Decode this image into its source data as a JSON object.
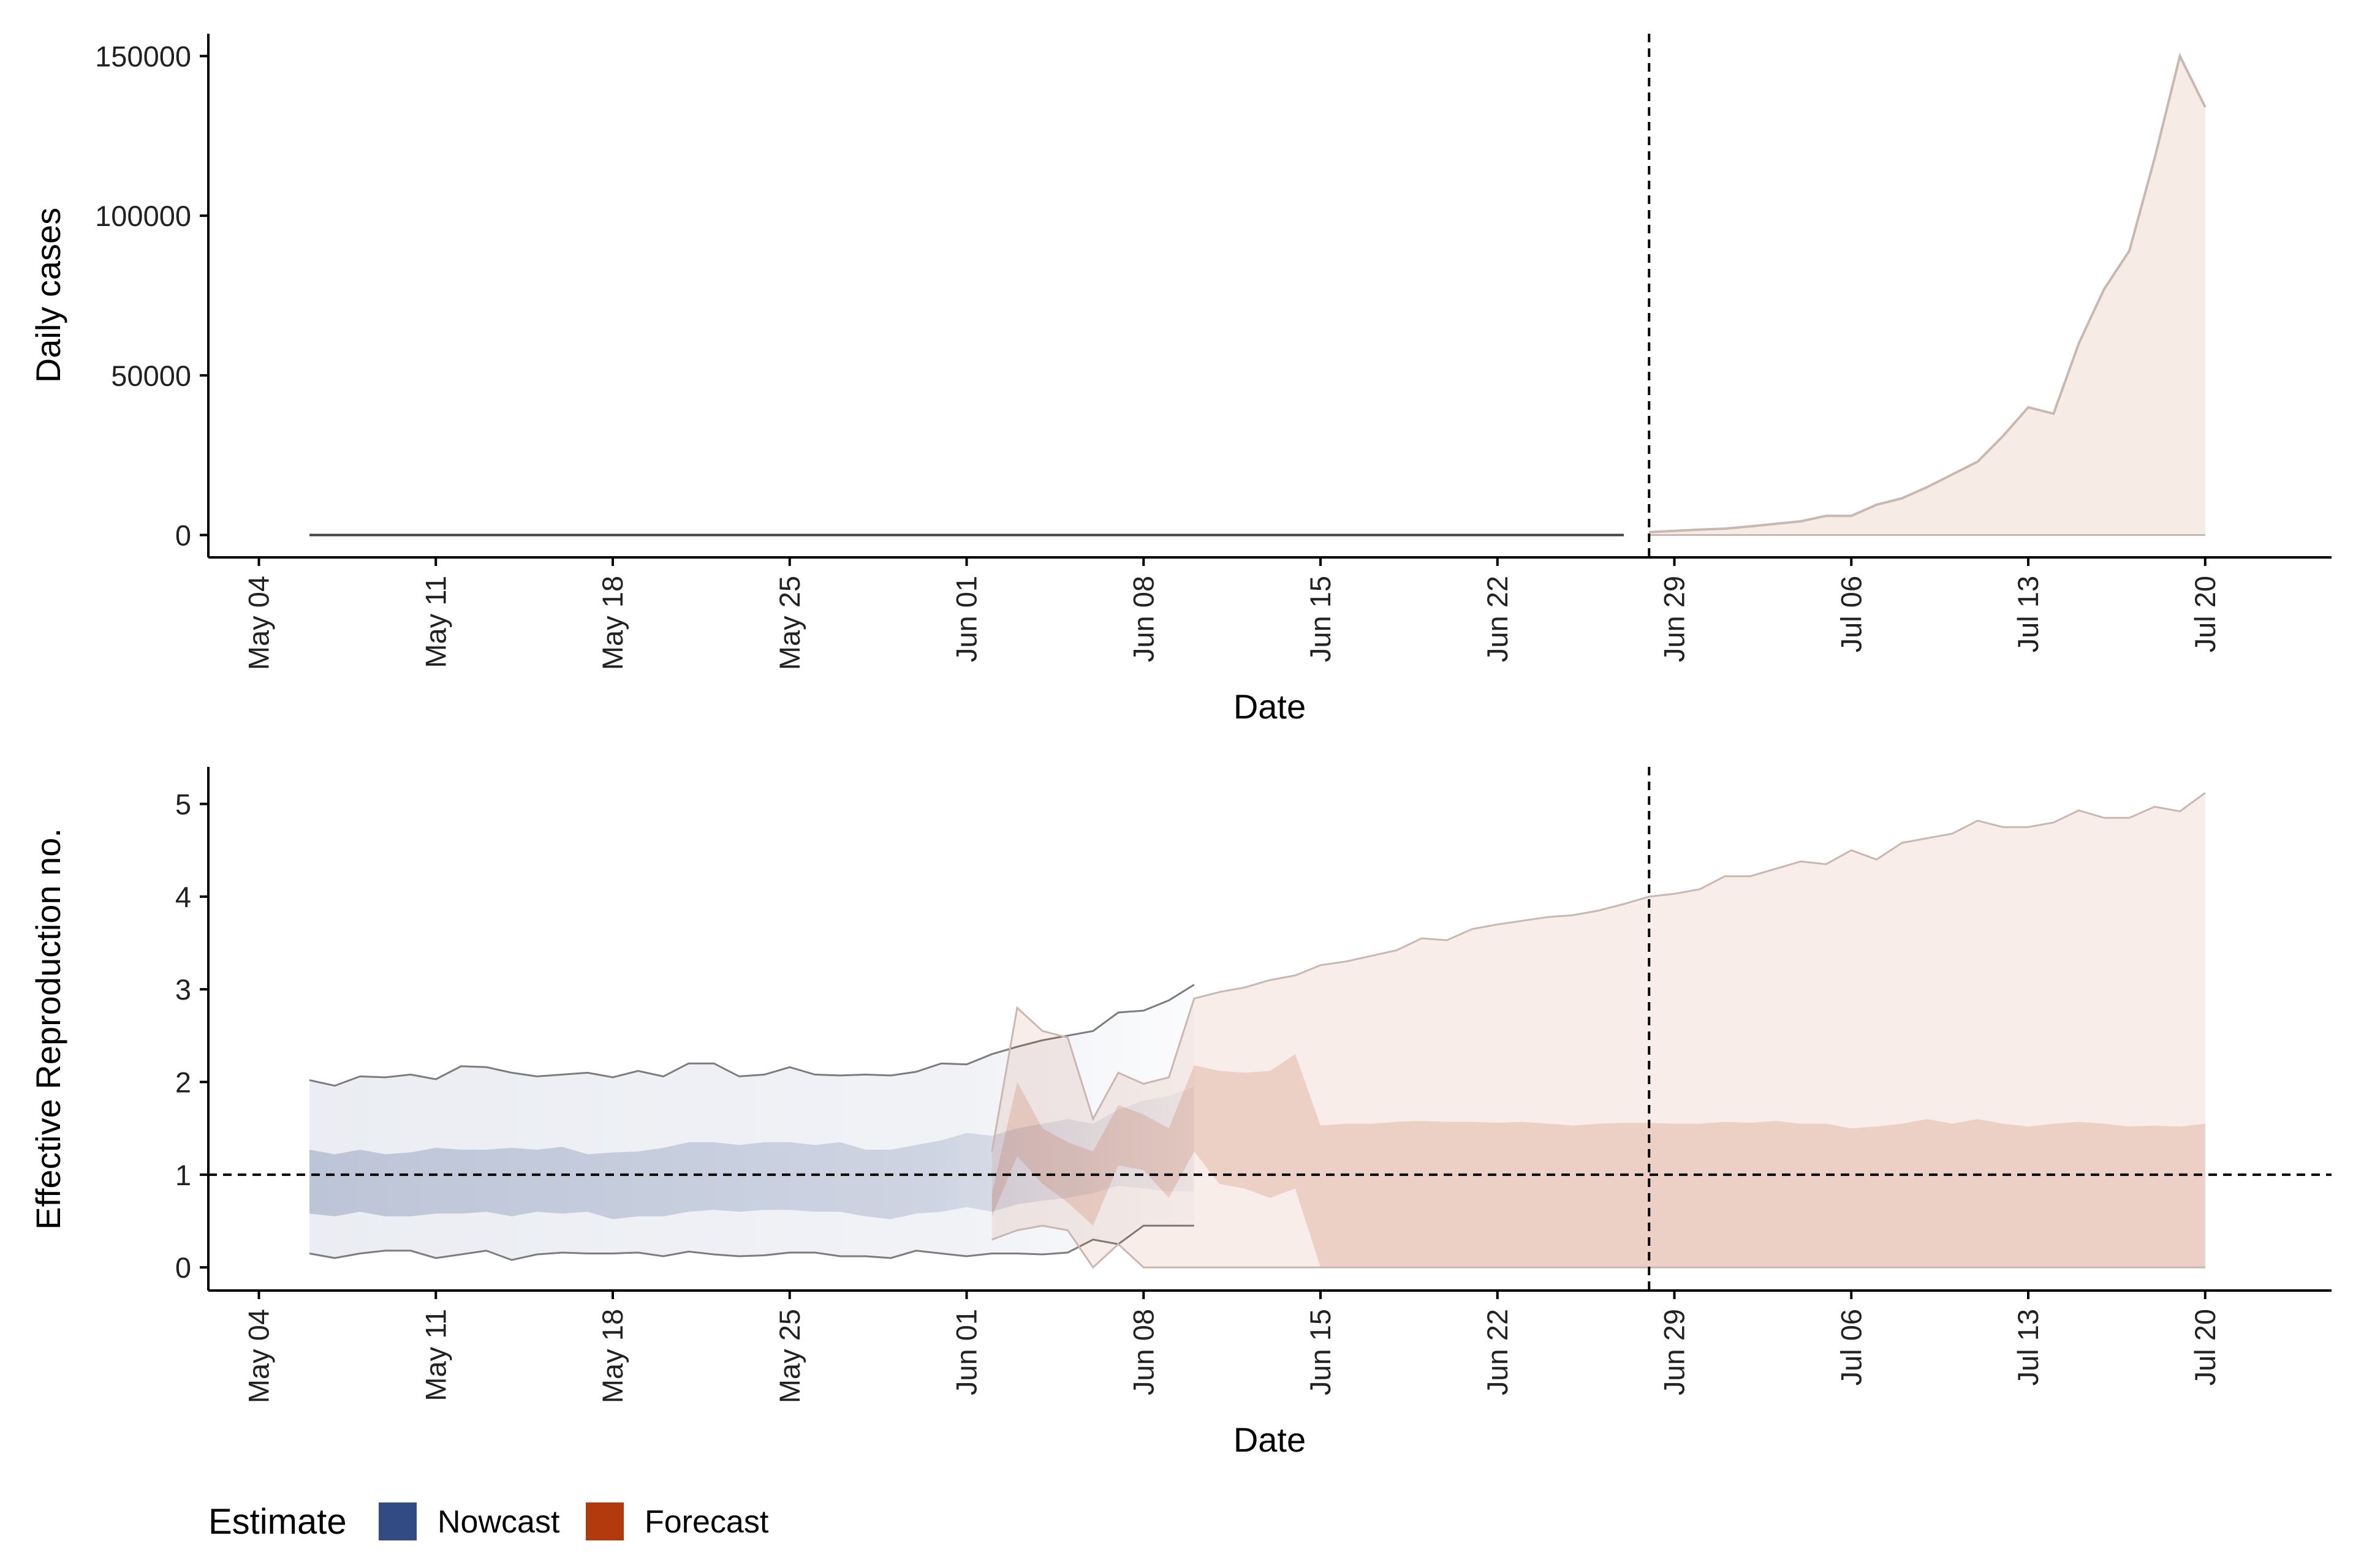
{
  "colors": {
    "nowcast": "#324b84",
    "forecast": "#b33a0c",
    "axis": "#000000",
    "band_edge": "#7d7d7d",
    "forecast_edge": "#c9b7b2"
  },
  "legend": {
    "title": "Estimate",
    "items": [
      {
        "label": "Nowcast",
        "color": "#324b84"
      },
      {
        "label": "Forecast",
        "color": "#b33a0c"
      }
    ]
  },
  "chart_data": [
    {
      "type": "area",
      "ylabel": "Daily cases",
      "xlabel": "Date",
      "x_range": [
        "2020-05-02",
        "2020-07-25"
      ],
      "ylim": [
        -7000,
        157000
      ],
      "y_ticks": [
        0,
        50000,
        100000,
        150000
      ],
      "x_ticks": [
        "2020-05-04",
        "2020-05-11",
        "2020-05-18",
        "2020-05-25",
        "2020-06-01",
        "2020-06-08",
        "2020-06-15",
        "2020-06-22",
        "2020-06-29",
        "2020-07-06",
        "2020-07-13",
        "2020-07-20"
      ],
      "x_tick_labels": [
        "May 04",
        "May 11",
        "May 18",
        "May 25",
        "Jun 01",
        "Jun 08",
        "Jun 15",
        "Jun 22",
        "Jun 29",
        "Jul 06",
        "Jul 13",
        "Jul 20"
      ],
      "vline": "2020-06-28",
      "grid": false,
      "series": [
        {
          "name": "Nowcast",
          "x_start": "2020-05-06",
          "x_end": "2020-06-27",
          "lower": 0,
          "upper": 300
        },
        {
          "name": "Forecast",
          "x_start": "2020-06-28",
          "upper": [
            900,
            1300,
            1700,
            2000,
            2700,
            3500,
            4300,
            6000,
            6000,
            9500,
            11500,
            15000,
            19000,
            23000,
            31000,
            40000,
            38000,
            60000,
            77000,
            89000,
            118000,
            150000,
            134000
          ],
          "lower": 0
        }
      ]
    },
    {
      "type": "area",
      "ylabel": "Effective Reproduction no.",
      "xlabel": "Date",
      "x_range": [
        "2020-05-02",
        "2020-07-25"
      ],
      "ylim": [
        -0.25,
        5.4
      ],
      "y_ticks": [
        0,
        1,
        2,
        3,
        4,
        5
      ],
      "x_ticks": [
        "2020-05-04",
        "2020-05-11",
        "2020-05-18",
        "2020-05-25",
        "2020-06-01",
        "2020-06-08",
        "2020-06-15",
        "2020-06-22",
        "2020-06-29",
        "2020-07-06",
        "2020-07-13",
        "2020-07-20"
      ],
      "x_tick_labels": [
        "May 04",
        "May 11",
        "May 18",
        "May 25",
        "Jun 01",
        "Jun 08",
        "Jun 15",
        "Jun 22",
        "Jun 29",
        "Jul 06",
        "Jul 13",
        "Jul 20"
      ],
      "vline": "2020-06-28",
      "hline": 1,
      "grid": false,
      "series": [
        {
          "name": "Nowcast",
          "x_start": "2020-05-06",
          "upper90": [
            2.02,
            1.96,
            2.06,
            2.05,
            2.08,
            2.03,
            2.17,
            2.16,
            2.1,
            2.06,
            2.08,
            2.1,
            2.05,
            2.12,
            2.06,
            2.2,
            2.2,
            2.06,
            2.08,
            2.16,
            2.08,
            2.07,
            2.08,
            2.07,
            2.11,
            2.2,
            2.19,
            2.3,
            2.38,
            2.45,
            2.5,
            2.55,
            2.75,
            2.77,
            2.88,
            3.05
          ],
          "lower90": [
            0.15,
            0.1,
            0.15,
            0.18,
            0.18,
            0.1,
            0.14,
            0.18,
            0.08,
            0.14,
            0.16,
            0.15,
            0.15,
            0.16,
            0.12,
            0.17,
            0.14,
            0.12,
            0.13,
            0.16,
            0.16,
            0.12,
            0.12,
            0.1,
            0.18,
            0.15,
            0.12,
            0.15,
            0.15,
            0.14,
            0.16,
            0.3,
            0.25,
            0.45,
            0.45,
            0.45
          ],
          "upper50": [
            1.27,
            1.22,
            1.27,
            1.22,
            1.24,
            1.29,
            1.27,
            1.27,
            1.29,
            1.27,
            1.3,
            1.22,
            1.24,
            1.25,
            1.29,
            1.35,
            1.35,
            1.32,
            1.35,
            1.35,
            1.32,
            1.35,
            1.27,
            1.27,
            1.32,
            1.37,
            1.45,
            1.42,
            1.5,
            1.55,
            1.6,
            1.55,
            1.7,
            1.8,
            1.85,
            1.95
          ],
          "lower50": [
            0.58,
            0.55,
            0.6,
            0.55,
            0.55,
            0.58,
            0.58,
            0.6,
            0.55,
            0.6,
            0.58,
            0.6,
            0.52,
            0.55,
            0.55,
            0.6,
            0.62,
            0.6,
            0.62,
            0.62,
            0.6,
            0.6,
            0.55,
            0.52,
            0.58,
            0.6,
            0.65,
            0.6,
            0.68,
            0.72,
            0.75,
            0.8,
            0.88,
            0.85,
            0.82,
            0.82
          ]
        },
        {
          "name": "Forecast",
          "x_start": "2020-06-02",
          "upper90": [
            1.25,
            2.8,
            2.55,
            2.48,
            1.6,
            2.1,
            1.98,
            2.05,
            2.9,
            2.97,
            3.02,
            3.1,
            3.15,
            3.26,
            3.3,
            3.36,
            3.42,
            3.55,
            3.53,
            3.65,
            3.7,
            3.74,
            3.78,
            3.8,
            3.85,
            3.92,
            4.0,
            4.03,
            4.08,
            4.22,
            4.22,
            4.3,
            4.38,
            4.35,
            4.5,
            4.4,
            4.58,
            4.63,
            4.68,
            4.82,
            4.75,
            4.75,
            4.8,
            4.93,
            4.85,
            4.85,
            4.97,
            4.92,
            5.12
          ],
          "lower90": [
            0.3,
            0.4,
            0.45,
            0.4,
            0.0,
            0.25,
            0.0,
            0.0,
            0.0,
            0.0,
            0.0,
            0.0,
            0.0,
            0.0,
            0.0,
            0.0,
            0.0,
            0.0,
            0.0,
            0.0,
            0.0,
            0.0,
            0.0,
            0.0,
            0.0,
            0.0,
            0.0,
            0.0,
            0.0,
            0.0,
            0.0,
            0.0,
            0.0,
            0.0,
            0.0,
            0.0,
            0.0,
            0.0,
            0.0,
            0.0,
            0.0,
            0.0,
            0.0,
            0.0,
            0.0,
            0.0,
            0.0,
            0.0,
            0.0
          ],
          "upper50": [
            0.8,
            2.0,
            1.5,
            1.35,
            1.25,
            1.75,
            1.65,
            1.5,
            2.18,
            2.12,
            2.1,
            2.12,
            2.3,
            1.53,
            1.55,
            1.55,
            1.57,
            1.58,
            1.57,
            1.57,
            1.56,
            1.57,
            1.55,
            1.53,
            1.55,
            1.56,
            1.56,
            1.55,
            1.55,
            1.57,
            1.56,
            1.58,
            1.55,
            1.55,
            1.5,
            1.52,
            1.55,
            1.6,
            1.55,
            1.6,
            1.55,
            1.52,
            1.55,
            1.57,
            1.55,
            1.52,
            1.53,
            1.52,
            1.55
          ],
          "lower50": [
            0.55,
            1.2,
            0.9,
            0.7,
            0.45,
            1.1,
            1.05,
            0.75,
            1.25,
            0.9,
            0.85,
            0.75,
            0.85,
            0.0,
            0.0,
            0.0,
            0.0,
            0.0,
            0.0,
            0.0,
            0.0,
            0.0,
            0.0,
            0.0,
            0.0,
            0.0,
            0.0,
            0.0,
            0.0,
            0.0,
            0.0,
            0.0,
            0.0,
            0.0,
            0.0,
            0.0,
            0.0,
            0.0,
            0.0,
            0.0,
            0.0,
            0.0,
            0.0,
            0.0,
            0.0,
            0.0,
            0.0,
            0.0,
            0.0
          ]
        }
      ]
    }
  ]
}
